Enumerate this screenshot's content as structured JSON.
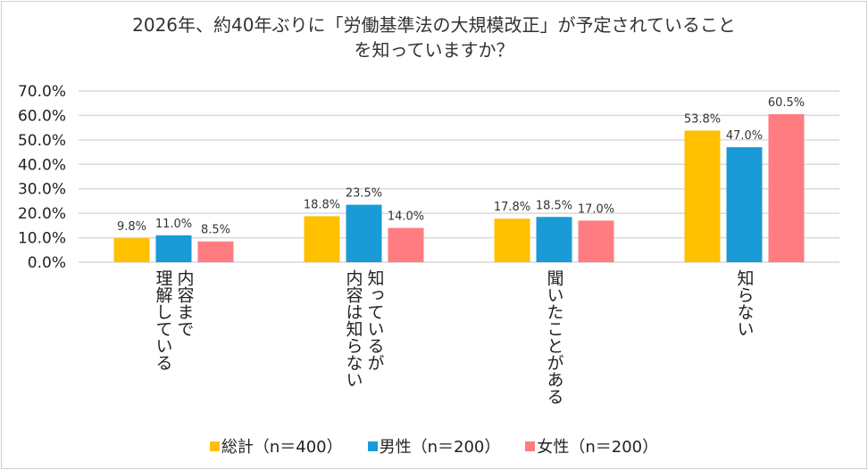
{
  "chart_data": {
    "type": "bar",
    "title_lines": [
      "2026年、約40年ぶりに「労働基準法の大規模改正」が予定されていること",
      "を知っていますか？"
    ],
    "categories": [
      "内容まで\n理解している",
      "知っているが\n内容は知らない",
      "聞いたことがある",
      "知らない"
    ],
    "series": [
      {
        "name": "総計（n＝400）",
        "color": "#FFC000",
        "values": [
          9.8,
          18.8,
          17.8,
          53.8
        ]
      },
      {
        "name": "男性（n＝200）",
        "color": "#1A9BD7",
        "values": [
          11.0,
          23.5,
          18.5,
          47.0
        ]
      },
      {
        "name": "女性（n＝200）",
        "color": "#FF7C80",
        "values": [
          8.5,
          14.0,
          17.0,
          60.5
        ]
      }
    ],
    "ylim": [
      0,
      70
    ],
    "yticks": [
      0,
      10,
      20,
      30,
      40,
      50,
      60,
      70
    ],
    "ytick_labels": [
      "0.0%",
      "10.0%",
      "20.0%",
      "30.0%",
      "40.0%",
      "50.0%",
      "60.0%",
      "70.0%"
    ],
    "data_labels": [
      [
        "9.8%",
        "18.8%",
        "17.8%",
        "53.8%"
      ],
      [
        "11.0%",
        "23.5%",
        "18.5%",
        "47.0%"
      ],
      [
        "8.5%",
        "14.0%",
        "17.0%",
        "60.5%"
      ]
    ],
    "grid": true,
    "legend": "bottom"
  }
}
